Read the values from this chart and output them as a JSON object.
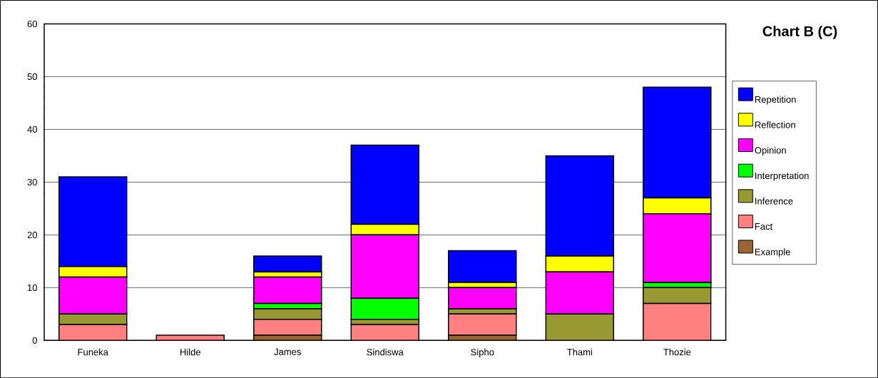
{
  "chart_data": {
    "type": "bar",
    "title": "Chart B (C)",
    "stacked": true,
    "legend": "right",
    "grid": "y",
    "categories": [
      "Funeka",
      "Hilde",
      "James",
      "Sindiswa",
      "Sipho",
      "Thami",
      "Thozie"
    ],
    "ylim": [
      0,
      60
    ],
    "yticks": [
      0,
      10,
      20,
      30,
      40,
      50,
      60
    ],
    "series": [
      {
        "name": "Example",
        "color": "#996633",
        "values": [
          0,
          0,
          1,
          0,
          1,
          0,
          0
        ]
      },
      {
        "name": "Fact",
        "color": "#ff8080",
        "values": [
          3,
          1,
          3,
          3,
          4,
          0,
          7
        ]
      },
      {
        "name": "Inference",
        "color": "#999933",
        "values": [
          2,
          0,
          2,
          1,
          1,
          5,
          3
        ]
      },
      {
        "name": "Interpretation",
        "color": "#00ff00",
        "values": [
          0,
          0,
          1,
          4,
          0,
          0,
          1
        ]
      },
      {
        "name": "Opinion",
        "color": "#ff00ff",
        "values": [
          7,
          0,
          5,
          12,
          4,
          8,
          13
        ]
      },
      {
        "name": "Reflection",
        "color": "#ffff00",
        "values": [
          2,
          0,
          1,
          2,
          1,
          3,
          3
        ]
      },
      {
        "name": "Repetition",
        "color": "#0000ff",
        "values": [
          17,
          0,
          3,
          15,
          6,
          19,
          21
        ]
      }
    ]
  }
}
